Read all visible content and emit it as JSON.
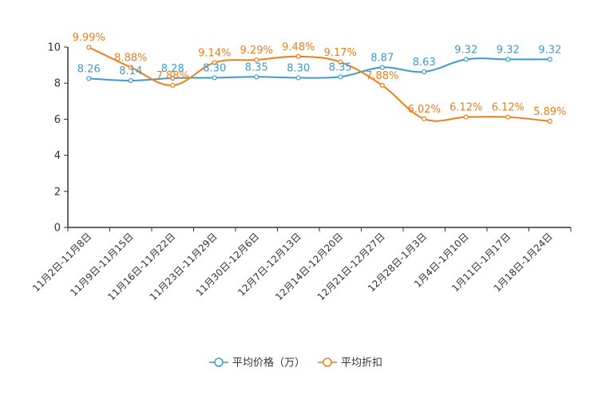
{
  "chart_data": {
    "type": "line",
    "title": "",
    "xlabel": "",
    "ylabel": "",
    "ylim": [
      0,
      10
    ],
    "yticks": [
      0,
      2,
      4,
      6,
      8,
      10
    ],
    "grid": false,
    "legend_position": "bottom-center",
    "categories": [
      "11月2日-11月8日",
      "11月9日-11月15日",
      "11月16日-11月22日",
      "11月23日-11月29日",
      "11月30日-12月6日",
      "12月7日-12月13日",
      "12月14日-12月20日",
      "12月21日-12月27日",
      "12月28日-1月3日",
      "1月4日-1月10日",
      "1月11日-1月17日",
      "1月18日-1月24日"
    ],
    "series": [
      {
        "name": "平均价格（万）",
        "color": "#3d9ad1",
        "values": [
          8.26,
          8.14,
          8.28,
          8.3,
          8.35,
          8.3,
          8.35,
          8.87,
          8.63,
          9.32,
          9.32,
          9.32
        ],
        "labels": [
          "8.26",
          "8.14",
          "8.28",
          "8.30",
          "8.35",
          "8.30",
          "8.35",
          "8.87",
          "8.63",
          "9.32",
          "9.32",
          "9.32"
        ]
      },
      {
        "name": "平均折扣",
        "color": "#f07d1a",
        "values": [
          9.99,
          8.88,
          7.88,
          9.14,
          9.29,
          9.48,
          9.17,
          7.88,
          6.02,
          6.12,
          6.12,
          5.89
        ],
        "labels": [
          "9.99%",
          "8.88%",
          "7.88%",
          "9.14%",
          "9.29%",
          "9.48%",
          "9.17%",
          "7.88%",
          "6.02%",
          "6.12%",
          "6.12%",
          "5.89%"
        ]
      }
    ]
  }
}
